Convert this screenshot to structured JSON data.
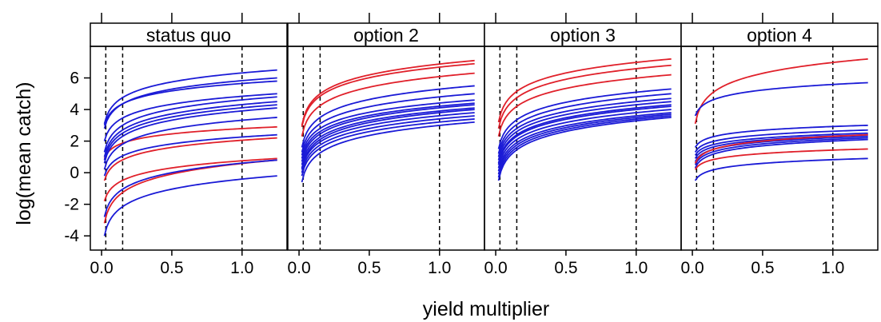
{
  "chart_data": {
    "type": "line",
    "xlabel": "yield multiplier",
    "ylabel": "log(mean catch)",
    "xlim": [
      -0.08,
      1.32
    ],
    "ylim": [
      -4.9,
      8.0
    ],
    "x_ticks": [
      "0.0",
      "0.5",
      "1.0"
    ],
    "x_tick_values": [
      0,
      0.5,
      1.0
    ],
    "y_ticks": [
      "-4",
      "-2",
      "0",
      "2",
      "4",
      "6"
    ],
    "y_tick_values": [
      -4,
      -2,
      0,
      2,
      4,
      6
    ],
    "reference_lines_x": [
      0.03,
      0.15,
      1.0
    ],
    "x_range": [
      0.02,
      1.25
    ],
    "colors": {
      "red": "#e0202a",
      "blue": "#1a1ad6"
    },
    "panels": [
      {
        "title": "status quo",
        "series": [
          {
            "color": "red",
            "start": 0.9,
            "end": 2.9
          },
          {
            "color": "red",
            "start": -0.5,
            "end": 2.2
          },
          {
            "color": "red",
            "start": -1.8,
            "end": 0.9
          },
          {
            "color": "red",
            "start": -3.2,
            "end": 0.8
          },
          {
            "color": "blue",
            "start": 3.1,
            "end": 6.5
          },
          {
            "color": "blue",
            "start": 3.0,
            "end": 5.8
          },
          {
            "color": "blue",
            "start": 2.8,
            "end": 6.0
          },
          {
            "color": "blue",
            "start": 2.0,
            "end": 5.0
          },
          {
            "color": "blue",
            "start": 1.3,
            "end": 4.8
          },
          {
            "color": "blue",
            "start": 1.0,
            "end": 4.5
          },
          {
            "color": "blue",
            "start": 0.8,
            "end": 4.3
          },
          {
            "color": "blue",
            "start": 0.6,
            "end": 4.1
          },
          {
            "color": "blue",
            "start": 0.2,
            "end": 3.5
          },
          {
            "color": "blue",
            "start": -0.2,
            "end": 2.4
          },
          {
            "color": "blue",
            "start": -2.8,
            "end": 0.8
          },
          {
            "color": "blue",
            "start": -4.0,
            "end": -0.2
          }
        ]
      },
      {
        "title": "option 2",
        "series": [
          {
            "color": "red",
            "start": 3.0,
            "end": 7.1
          },
          {
            "color": "red",
            "start": 2.9,
            "end": 6.9
          },
          {
            "color": "red",
            "start": 2.3,
            "end": 6.3
          },
          {
            "color": "blue",
            "start": 1.6,
            "end": 5.5
          },
          {
            "color": "blue",
            "start": 1.3,
            "end": 5.0
          },
          {
            "color": "blue",
            "start": 1.1,
            "end": 4.6
          },
          {
            "color": "blue",
            "start": 0.9,
            "end": 4.4
          },
          {
            "color": "blue",
            "start": 0.7,
            "end": 4.3
          },
          {
            "color": "blue",
            "start": 0.5,
            "end": 4.1
          },
          {
            "color": "blue",
            "start": 0.3,
            "end": 4.0
          },
          {
            "color": "blue",
            "start": 0.2,
            "end": 3.8
          },
          {
            "color": "blue",
            "start": 0.0,
            "end": 3.6
          },
          {
            "color": "blue",
            "start": -0.2,
            "end": 3.4
          },
          {
            "color": "blue",
            "start": -0.6,
            "end": 3.2
          }
        ]
      },
      {
        "title": "option 3",
        "series": [
          {
            "color": "red",
            "start": 3.2,
            "end": 7.2
          },
          {
            "color": "red",
            "start": 2.8,
            "end": 6.8
          },
          {
            "color": "red",
            "start": 2.3,
            "end": 6.2
          },
          {
            "color": "blue",
            "start": 1.5,
            "end": 5.3
          },
          {
            "color": "blue",
            "start": 1.2,
            "end": 5.0
          },
          {
            "color": "blue",
            "start": 1.0,
            "end": 4.7
          },
          {
            "color": "blue",
            "start": 0.8,
            "end": 4.5
          },
          {
            "color": "blue",
            "start": 0.6,
            "end": 4.3
          },
          {
            "color": "blue",
            "start": 0.5,
            "end": 4.2
          },
          {
            "color": "blue",
            "start": 0.3,
            "end": 4.0
          },
          {
            "color": "blue",
            "start": 0.1,
            "end": 3.8
          },
          {
            "color": "blue",
            "start": -0.1,
            "end": 3.7
          },
          {
            "color": "blue",
            "start": -0.3,
            "end": 3.6
          },
          {
            "color": "blue",
            "start": -0.5,
            "end": 3.5
          }
        ]
      },
      {
        "title": "option 4",
        "series": [
          {
            "color": "red",
            "start": 3.1,
            "end": 7.2
          },
          {
            "color": "blue",
            "start": 3.6,
            "end": 5.7
          },
          {
            "color": "blue",
            "start": 1.6,
            "end": 3.0
          },
          {
            "color": "blue",
            "start": 1.3,
            "end": 2.7
          },
          {
            "color": "blue",
            "start": 1.1,
            "end": 2.5
          },
          {
            "color": "blue",
            "start": 0.9,
            "end": 2.4
          },
          {
            "color": "blue",
            "start": 0.7,
            "end": 2.3
          },
          {
            "color": "blue",
            "start": 0.5,
            "end": 2.2
          },
          {
            "color": "blue",
            "start": 0.3,
            "end": 2.1
          },
          {
            "color": "red",
            "start": 0.6,
            "end": 2.4
          },
          {
            "color": "red",
            "start": 0.2,
            "end": 1.5
          },
          {
            "color": "blue",
            "start": -0.5,
            "end": 0.9
          }
        ]
      }
    ]
  }
}
